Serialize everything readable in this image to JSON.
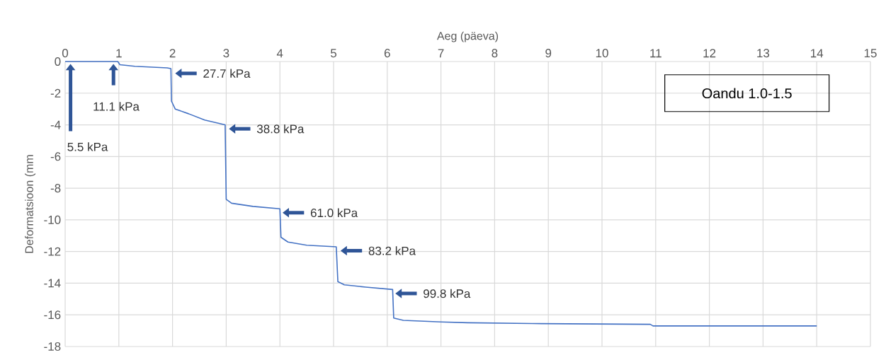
{
  "chart_data": {
    "type": "line",
    "title": "Oandu 1.0-1.5",
    "xlabel": "Aeg (päeva)",
    "ylabel": "Deformatsioon (mm",
    "x": [
      0,
      0.98,
      1.02,
      1.3,
      1.9,
      1.97,
      1.98,
      2.05,
      2.3,
      2.6,
      2.98,
      3.0,
      3.1,
      3.5,
      4.0,
      4.02,
      4.15,
      4.5,
      5.05,
      5.08,
      5.2,
      5.6,
      6.1,
      6.12,
      6.3,
      7.0,
      7.5,
      8.7,
      10.9,
      10.95,
      14.0
    ],
    "series": [
      {
        "color": "#4472c4",
        "values": [
          0,
          0,
          -0.2,
          -0.3,
          -0.4,
          -0.45,
          -2.5,
          -3.0,
          -3.3,
          -3.7,
          -4.0,
          -8.7,
          -8.95,
          -9.15,
          -9.3,
          -11.1,
          -11.4,
          -11.6,
          -11.7,
          -13.9,
          -14.1,
          -14.25,
          -14.4,
          -16.2,
          -16.35,
          -16.45,
          -16.5,
          -16.55,
          -16.6,
          -16.7,
          -16.7
        ]
      }
    ],
    "xlim": [
      0,
      15
    ],
    "ylim": [
      -18,
      0
    ],
    "xticks": [
      0,
      1,
      2,
      3,
      4,
      5,
      6,
      7,
      8,
      9,
      10,
      11,
      12,
      13,
      14,
      15
    ],
    "yticks": [
      0,
      -2,
      -4,
      -6,
      -8,
      -10,
      -12,
      -14,
      -16,
      -18
    ],
    "grid": true,
    "marker": "none",
    "line_style": "solid",
    "annotations": [
      "5.5 kPa",
      "11.1 kPa",
      {
        "text": "27.7 kPa",
        "x": 2.0,
        "y": -0.5
      },
      {
        "text": "38.8 kPa",
        "x": 3.0,
        "y": -4.0
      },
      {
        "text": "61.0 kPa",
        "x": 4.0,
        "y": -9.3
      },
      {
        "text": "83.2 kPa",
        "x": 5.08,
        "y": -11.7
      },
      {
        "text": "99.8 kPa",
        "x": 6.1,
        "y": -14.4
      }
    ]
  }
}
